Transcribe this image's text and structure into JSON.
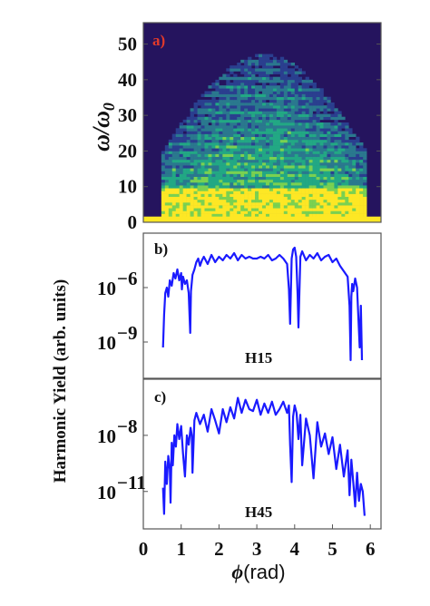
{
  "chart_data": [
    {
      "panel": "a)",
      "type": "heatmap",
      "ylabel_base": "ω/ω",
      "ylabel_sub": "0",
      "y_ticks": [
        0,
        10,
        20,
        30,
        40,
        50
      ],
      "ylim": [
        0,
        56
      ],
      "xlim": [
        0,
        6.283
      ],
      "colormap": [
        "#25145e",
        "#2a3f8f",
        "#2a788e",
        "#22a884",
        "#7ad151",
        "#fde725"
      ],
      "description_values": {
        "plateau_cutoff_center_order": 47,
        "plateau_cutoff_edge_order": 20,
        "bright_band_top_order": 10
      }
    },
    {
      "panel": "b)",
      "type": "line",
      "series": [
        {
          "name": "H15",
          "color": "#1a1aff"
        }
      ],
      "y_scale": "log",
      "ylim": [
        1e-11,
        0.001
      ],
      "y_ticks": [
        {
          "label_base": "10",
          "label_exp": "−6",
          "value": -6
        },
        {
          "label_base": "10",
          "label_exp": "−9",
          "value": -9
        }
      ],
      "x": [
        0.52,
        0.55,
        0.58,
        0.62,
        0.66,
        0.7,
        0.75,
        0.8,
        0.85,
        0.9,
        0.95,
        1.0,
        1.02,
        1.05,
        1.1,
        1.15,
        1.2,
        1.24,
        1.26,
        1.3,
        1.35,
        1.4,
        1.45,
        1.5,
        1.55,
        1.6,
        1.7,
        1.8,
        1.9,
        2.0,
        2.1,
        2.2,
        2.3,
        2.4,
        2.5,
        2.6,
        2.7,
        2.8,
        2.9,
        3.0,
        3.1,
        3.2,
        3.3,
        3.4,
        3.5,
        3.6,
        3.7,
        3.8,
        3.85,
        3.88,
        3.92,
        3.96,
        4.0,
        4.04,
        4.08,
        4.1,
        4.15,
        4.2,
        4.3,
        4.4,
        4.5,
        4.6,
        4.7,
        4.8,
        4.9,
        5.0,
        5.1,
        5.2,
        5.3,
        5.4,
        5.45,
        5.48,
        5.5,
        5.52,
        5.55,
        5.6,
        5.65,
        5.68,
        5.72,
        5.75,
        5.78
      ],
      "y": [
        -9.3,
        -7.5,
        -6.3,
        -6.0,
        -6.5,
        -5.6,
        -5.9,
        -5.2,
        -5.5,
        -5.0,
        -5.6,
        -5.2,
        -6.1,
        -5.4,
        -5.8,
        -5.6,
        -6.3,
        -8.5,
        -6.2,
        -5.3,
        -5.0,
        -4.6,
        -4.4,
        -4.8,
        -4.5,
        -4.3,
        -4.7,
        -4.2,
        -4.6,
        -4.3,
        -4.5,
        -4.2,
        -4.4,
        -4.1,
        -4.5,
        -4.2,
        -4.4,
        -4.3,
        -4.4,
        -4.4,
        -4.3,
        -4.4,
        -4.2,
        -4.5,
        -4.4,
        -4.2,
        -4.4,
        -4.7,
        -6.1,
        -8.0,
        -4.4,
        -3.9,
        -3.8,
        -4.3,
        -6.4,
        -8.2,
        -4.3,
        -4.0,
        -4.5,
        -4.2,
        -4.4,
        -4.1,
        -4.5,
        -4.3,
        -4.2,
        -4.6,
        -4.4,
        -4.8,
        -5.1,
        -5.4,
        -7.0,
        -10.0,
        -6.5,
        -5.8,
        -6.2,
        -5.5,
        -6.0,
        -7.5,
        -9.3,
        -7.0,
        -10.0
      ]
    },
    {
      "panel": "c)",
      "type": "line",
      "series": [
        {
          "name": "H45",
          "color": "#1a1aff"
        }
      ],
      "y_scale": "log",
      "ylim": [
        1e-13,
        1e-05
      ],
      "y_ticks": [
        {
          "label_base": "10",
          "label_exp": "−8",
          "value": -8
        },
        {
          "label_base": "10",
          "label_exp": "−11",
          "value": -11
        }
      ],
      "x_ticks": [
        0,
        1,
        2,
        3,
        4,
        5,
        6
      ],
      "xlim": [
        0,
        6.283
      ],
      "xlabel_symbol": "ϕ",
      "xlabel_unit": "(rad)",
      "x": [
        0.52,
        0.55,
        0.58,
        0.62,
        0.66,
        0.7,
        0.72,
        0.75,
        0.78,
        0.82,
        0.86,
        0.9,
        0.95,
        1.0,
        1.05,
        1.1,
        1.15,
        1.2,
        1.25,
        1.28,
        1.3,
        1.35,
        1.4,
        1.5,
        1.6,
        1.7,
        1.8,
        1.9,
        2.0,
        2.1,
        2.2,
        2.3,
        2.4,
        2.5,
        2.6,
        2.7,
        2.8,
        2.9,
        3.0,
        3.1,
        3.2,
        3.3,
        3.4,
        3.5,
        3.6,
        3.7,
        3.8,
        3.85,
        3.88,
        3.92,
        3.96,
        4.0,
        4.05,
        4.1,
        4.15,
        4.2,
        4.3,
        4.4,
        4.5,
        4.6,
        4.7,
        4.8,
        4.9,
        5.0,
        5.1,
        5.2,
        5.3,
        5.4,
        5.45,
        5.5,
        5.55,
        5.6,
        5.65,
        5.7,
        5.75,
        5.8,
        5.85
      ],
      "y": [
        -10.8,
        -12.2,
        -9.4,
        -10.6,
        -9.1,
        -9.8,
        -11.6,
        -8.4,
        -9.6,
        -8.0,
        -8.6,
        -7.4,
        -8.2,
        -7.5,
        -9.0,
        -10.2,
        -8.0,
        -8.5,
        -7.6,
        -8.0,
        -10.0,
        -7.2,
        -6.8,
        -7.4,
        -6.9,
        -7.8,
        -6.6,
        -7.2,
        -7.9,
        -6.6,
        -7.3,
        -6.5,
        -7.1,
        -6.0,
        -6.8,
        -6.1,
        -6.6,
        -6.7,
        -6.1,
        -6.9,
        -6.3,
        -6.8,
        -6.2,
        -6.9,
        -6.6,
        -6.2,
        -6.8,
        -6.4,
        -8.5,
        -10.5,
        -7.0,
        -6.4,
        -6.8,
        -8.2,
        -6.9,
        -9.6,
        -7.1,
        -8.0,
        -10.3,
        -7.3,
        -8.6,
        -7.9,
        -9.0,
        -8.1,
        -9.8,
        -8.5,
        -10.2,
        -8.8,
        -11.2,
        -9.3,
        -10.5,
        -11.8,
        -10.0,
        -11.5,
        -10.6,
        -11.0,
        -12.3
      ]
    }
  ],
  "shared": {
    "ylabel": "Harmonic Yield (arb. units)"
  }
}
